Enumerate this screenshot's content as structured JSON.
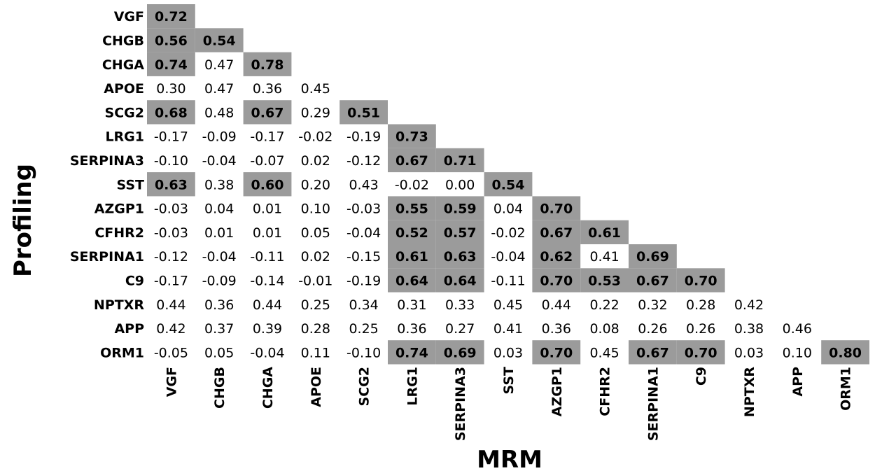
{
  "chart_data": {
    "type": "heatmap",
    "title": "",
    "xlabel": "MRM",
    "ylabel": "Profiling",
    "highlight_color": "#9b9b9b",
    "row_labels": [
      "VGF",
      "CHGB",
      "CHGA",
      "APOE",
      "SCG2",
      "LRG1",
      "SERPINA3",
      "SST",
      "AZGP1",
      "CFHR2",
      "SERPINA1",
      "C9",
      "NPTXR",
      "APP",
      "ORM1"
    ],
    "col_labels": [
      "VGF",
      "CHGB",
      "CHGA",
      "APOE",
      "SCG2",
      "LRG1",
      "SERPINA3",
      "SST",
      "AZGP1",
      "CFHR2",
      "SERPINA1",
      "C9",
      "NPTXR",
      "APP",
      "ORM1"
    ],
    "values": [
      [
        "0.72"
      ],
      [
        "0.56",
        "0.54"
      ],
      [
        "0.74",
        "0.47",
        "0.78"
      ],
      [
        "0.30",
        "0.47",
        "0.36",
        "0.45"
      ],
      [
        "0.68",
        "0.48",
        "0.67",
        "0.29",
        "0.51"
      ],
      [
        "-0.17",
        "-0.09",
        "-0.17",
        "-0.02",
        "-0.19",
        "0.73"
      ],
      [
        "-0.10",
        "-0.04",
        "-0.07",
        "0.02",
        "-0.12",
        "0.67",
        "0.71"
      ],
      [
        "0.63",
        "0.38",
        "0.60",
        "0.20",
        "0.43",
        "-0.02",
        "0.00",
        "0.54"
      ],
      [
        "-0.03",
        "0.04",
        "0.01",
        "0.10",
        "-0.03",
        "0.55",
        "0.59",
        "0.04",
        "0.70"
      ],
      [
        "-0.03",
        "0.01",
        "0.01",
        "0.05",
        "-0.04",
        "0.52",
        "0.57",
        "-0.02",
        "0.67",
        "0.61"
      ],
      [
        "-0.12",
        "-0.04",
        "-0.11",
        "0.02",
        "-0.15",
        "0.61",
        "0.63",
        "-0.04",
        "0.62",
        "0.41",
        "0.69"
      ],
      [
        "-0.17",
        "-0.09",
        "-0.14",
        "-0.01",
        "-0.19",
        "0.64",
        "0.64",
        "-0.11",
        "0.70",
        "0.53",
        "0.67",
        "0.70"
      ],
      [
        "0.44",
        "0.36",
        "0.44",
        "0.25",
        "0.34",
        "0.31",
        "0.33",
        "0.45",
        "0.44",
        "0.22",
        "0.32",
        "0.28",
        "0.42"
      ],
      [
        "0.42",
        "0.37",
        "0.39",
        "0.28",
        "0.25",
        "0.36",
        "0.27",
        "0.41",
        "0.36",
        "0.08",
        "0.26",
        "0.26",
        "0.38",
        "0.46"
      ],
      [
        "-0.05",
        "0.05",
        "-0.04",
        "0.11",
        "-0.10",
        "0.74",
        "0.69",
        "0.03",
        "0.70",
        "0.45",
        "0.67",
        "0.70",
        "0.03",
        "0.10",
        "0.80"
      ]
    ],
    "highlighted": [
      [
        0,
        0
      ],
      [
        1,
        0
      ],
      [
        1,
        1
      ],
      [
        2,
        0
      ],
      [
        2,
        2
      ],
      [
        4,
        0
      ],
      [
        4,
        2
      ],
      [
        4,
        4
      ],
      [
        5,
        5
      ],
      [
        6,
        5
      ],
      [
        6,
        6
      ],
      [
        7,
        0
      ],
      [
        7,
        2
      ],
      [
        7,
        7
      ],
      [
        8,
        5
      ],
      [
        8,
        6
      ],
      [
        8,
        8
      ],
      [
        9,
        5
      ],
      [
        9,
        6
      ],
      [
        9,
        8
      ],
      [
        9,
        9
      ],
      [
        10,
        5
      ],
      [
        10,
        6
      ],
      [
        10,
        8
      ],
      [
        10,
        10
      ],
      [
        11,
        5
      ],
      [
        11,
        6
      ],
      [
        11,
        8
      ],
      [
        11,
        9
      ],
      [
        11,
        10
      ],
      [
        11,
        11
      ],
      [
        14,
        5
      ],
      [
        14,
        6
      ],
      [
        14,
        8
      ],
      [
        14,
        10
      ],
      [
        14,
        11
      ],
      [
        14,
        14
      ]
    ]
  }
}
